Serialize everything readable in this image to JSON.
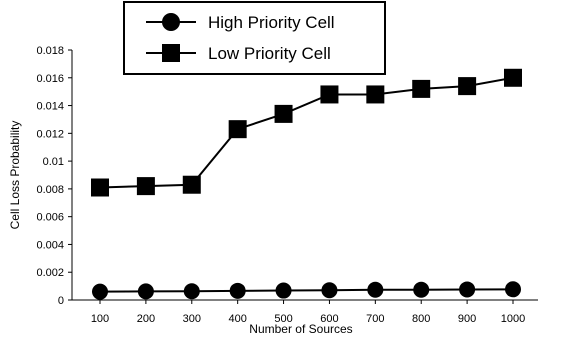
{
  "chart_data": {
    "type": "line",
    "title": "",
    "xlabel": "Number of Sources",
    "ylabel": "Cell Loss Probability",
    "x": [
      100,
      200,
      300,
      400,
      500,
      600,
      700,
      800,
      900,
      1000
    ],
    "x_tick_labels": [
      "100",
      "200",
      "300",
      "400",
      "500",
      "600",
      "700",
      "800",
      "900",
      "1000"
    ],
    "y_ticks": [
      0,
      0.002,
      0.004,
      0.006,
      0.008,
      0.01,
      0.012,
      0.014,
      0.016,
      0.018
    ],
    "y_tick_labels": [
      "0",
      "0.002",
      "0.004",
      "0.006",
      "0.008",
      "0.01",
      "0.012",
      "0.014",
      "0.016",
      "0.018"
    ],
    "ylim": [
      0,
      0.018
    ],
    "grid": false,
    "legend_position": "top",
    "series": [
      {
        "name": "High Priority Cell",
        "marker": "circle",
        "color": "#000000",
        "values": [
          0.0006,
          0.00062,
          0.00063,
          0.00066,
          0.00068,
          0.0007,
          0.00074,
          0.00074,
          0.00076,
          0.00077
        ]
      },
      {
        "name": "Low Priority Cell",
        "marker": "square",
        "color": "#000000",
        "values": [
          0.0081,
          0.0082,
          0.0083,
          0.0123,
          0.0134,
          0.0148,
          0.0148,
          0.0152,
          0.0154,
          0.016
        ]
      }
    ]
  }
}
